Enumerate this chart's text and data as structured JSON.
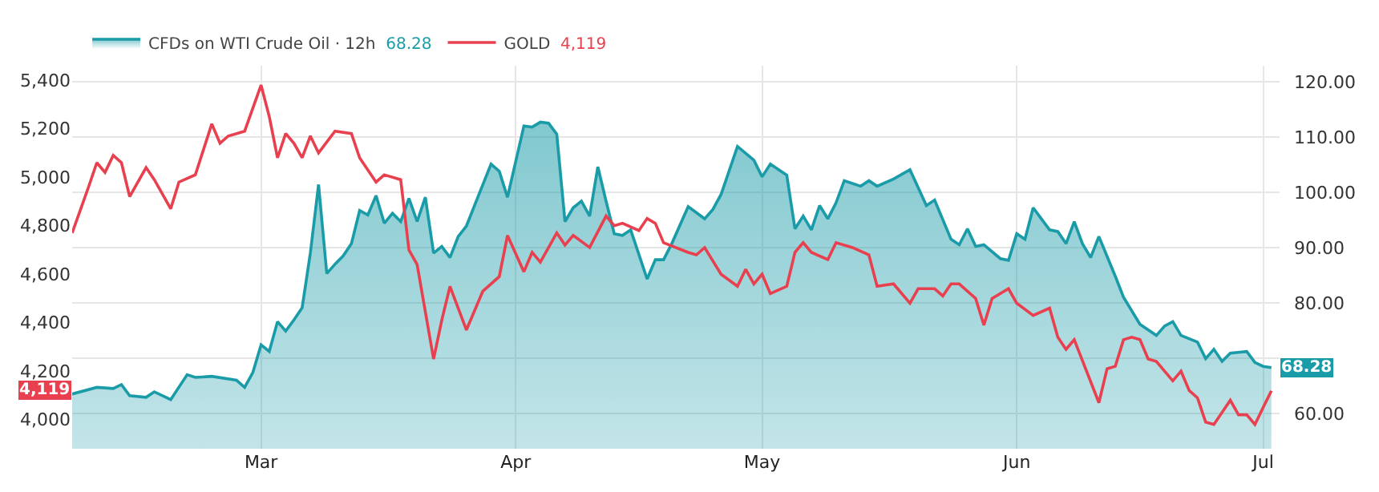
{
  "chart_data": {
    "type": "line",
    "xlim": [
      "--02-06",
      "--07-03"
    ],
    "xticks": [
      {
        "value": "--03-01",
        "label": "Mar"
      },
      {
        "value": "--04-01",
        "label": "Apr"
      },
      {
        "value": "--05-01",
        "label": "May"
      },
      {
        "value": "--06-01",
        "label": "Jun"
      },
      {
        "value": "--07-01",
        "label": "Jul"
      }
    ],
    "ylim": [
      3880,
      5460
    ],
    "yticks": [
      {
        "value": 4000,
        "label": "4,000"
      },
      {
        "value": 4200,
        "label": "4,200"
      },
      {
        "value": 4400,
        "label": "4,400"
      },
      {
        "value": 4600,
        "label": "4,600"
      },
      {
        "value": 4800,
        "label": "4,800"
      },
      {
        "value": 5000,
        "label": "5,000"
      },
      {
        "value": 5200,
        "label": "5,200"
      },
      {
        "value": 5400,
        "label": "5,400"
      }
    ],
    "y2lim": [
      53.6,
      122.9
    ],
    "y2ticks": [
      {
        "value": 60,
        "label": "60.00"
      },
      {
        "value": 70,
        "label": null
      },
      {
        "value": 80,
        "label": "80.00"
      },
      {
        "value": 90,
        "label": "90.00"
      },
      {
        "value": 100,
        "label": "100.00"
      },
      {
        "value": 110,
        "label": "110.00"
      },
      {
        "value": 120,
        "label": "120.00"
      }
    ],
    "grid": true,
    "legend": "top left",
    "annotations": [
      "4,119",
      "68.28"
    ],
    "series": [
      {
        "name": "GOLD",
        "color": "#e8404f",
        "x": [
          "--02-06",
          "--02-08",
          "--02-09",
          "--02-10",
          "--02-11",
          "--02-12",
          "--02-13",
          "--02-15",
          "--02-16",
          "--02-18",
          "--02-19",
          "--02-21",
          "--02-23",
          "--02-24",
          "--02-25",
          "--02-27",
          "--03-01",
          "--03-02",
          "--03-03",
          "--03-04",
          "--03-05",
          "--03-06",
          "--03-07",
          "--03-08",
          "--03-10",
          "--03-12",
          "--03-13",
          "--03-15",
          "--03-16",
          "--03-18",
          "--03-19",
          "--03-20",
          "--03-22",
          "--03-23",
          "--03-24",
          "--03-26",
          "--03-28",
          "--03-30",
          "--03-31",
          "--04-02",
          "--04-03",
          "--04-04",
          "--04-06",
          "--04-07",
          "--04-08",
          "--04-10",
          "--04-12",
          "--04-13",
          "--04-14",
          "--04-16",
          "--04-17",
          "--04-18",
          "--04-19",
          "--04-22",
          "--04-23",
          "--04-24",
          "--04-26",
          "--04-28",
          "--04-29",
          "--04-30",
          "--05-01",
          "--05-02",
          "--05-04",
          "--05-05",
          "--05-06",
          "--05-07",
          "--05-09",
          "--05-10",
          "--05-12",
          "--05-14",
          "--05-15",
          "--05-17",
          "--05-19",
          "--05-20",
          "--05-22",
          "--05-23",
          "--05-24",
          "--05-25",
          "--05-27",
          "--05-28",
          "--05-29",
          "--05-31",
          "--06-01",
          "--06-03",
          "--06-05",
          "--06-06",
          "--06-07",
          "--06-08",
          "--06-11",
          "--06-12",
          "--06-13",
          "--06-14",
          "--06-15",
          "--06-16",
          "--06-17",
          "--06-18",
          "--06-20",
          "--06-21",
          "--06-22",
          "--06-23",
          "--06-24",
          "--06-25",
          "--06-27",
          "--06-28",
          "--06-29",
          "--06-30",
          "--07-01",
          "--07-02"
        ],
        "values": [
          4770,
          4960,
          5060,
          5020,
          5090,
          5060,
          4920,
          5040,
          4990,
          4870,
          4980,
          5010,
          5220,
          5140,
          5170,
          5190,
          5380,
          5250,
          5080,
          5180,
          5140,
          5080,
          5170,
          5100,
          5190,
          5180,
          5080,
          4980,
          5010,
          4990,
          4700,
          4640,
          4250,
          4410,
          4550,
          4370,
          4530,
          4590,
          4760,
          4610,
          4690,
          4650,
          4770,
          4720,
          4760,
          4710,
          4840,
          4800,
          4810,
          4780,
          4830,
          4810,
          4730,
          4690,
          4680,
          4710,
          4600,
          4550,
          4620,
          4560,
          4600,
          4520,
          4550,
          4690,
          4730,
          4690,
          4660,
          4730,
          4710,
          4680,
          4550,
          4560,
          4480,
          4540,
          4540,
          4510,
          4560,
          4560,
          4500,
          4390,
          4500,
          4540,
          4480,
          4430,
          4460,
          4340,
          4290,
          4330,
          4070,
          4210,
          4220,
          4330,
          4340,
          4330,
          4250,
          4240,
          4160,
          4200,
          4120,
          4090,
          3990,
          3980,
          4080,
          4020,
          4020,
          3980,
          4050,
          4119
        ]
      },
      {
        "name": "CFDs on WTI Crude Oil · 12h",
        "color": "#1a9ba8",
        "type": "area",
        "axis": "y2",
        "x": [
          "--02-06",
          "--02-09",
          "--02-11",
          "--02-12",
          "--02-13",
          "--02-15",
          "--02-16",
          "--02-18",
          "--02-20",
          "--02-21",
          "--02-23",
          "--02-26",
          "--02-27",
          "--02-28",
          "--03-01",
          "--03-02",
          "--03-03",
          "--03-04",
          "--03-05",
          "--03-06",
          "--03-07",
          "--03-08",
          "--03-09",
          "--03-10",
          "--03-11",
          "--03-12",
          "--03-13",
          "--03-14",
          "--03-15",
          "--03-16",
          "--03-17",
          "--03-18",
          "--03-19",
          "--03-20",
          "--03-21",
          "--03-22",
          "--03-23",
          "--03-24",
          "--03-25",
          "--03-26",
          "--03-28",
          "--03-29",
          "--03-30",
          "--03-31",
          "--04-02",
          "--04-03",
          "--04-04",
          "--04-05",
          "--04-06",
          "--04-07",
          "--04-08",
          "--04-09",
          "--04-10",
          "--04-11",
          "--04-12",
          "--04-13",
          "--04-14",
          "--04-15",
          "--04-17",
          "--04-18",
          "--04-19",
          "--04-20",
          "--04-22",
          "--04-24",
          "--04-25",
          "--04-26",
          "--04-28",
          "--04-30",
          "--05-01",
          "--05-02",
          "--05-04",
          "--05-05",
          "--05-06",
          "--05-07",
          "--05-08",
          "--05-09",
          "--05-10",
          "--05-11",
          "--05-13",
          "--05-14",
          "--05-15",
          "--05-17",
          "--05-19",
          "--05-21",
          "--05-22",
          "--05-24",
          "--05-25",
          "--05-26",
          "--05-27",
          "--05-28",
          "--05-30",
          "--05-31",
          "--06-01",
          "--06-02",
          "--06-03",
          "--06-04",
          "--06-05",
          "--06-06",
          "--06-07",
          "--06-08",
          "--06-09",
          "--06-10",
          "--06-11",
          "--06-13",
          "--06-14",
          "--06-16",
          "--06-18",
          "--06-19",
          "--06-20",
          "--06-21",
          "--06-23",
          "--06-24",
          "--06-25",
          "--06-26",
          "--06-27",
          "--06-29",
          "--06-30",
          "--07-01",
          "--07-02"
        ],
        "values": [
          63.5,
          64.7,
          64.5,
          65.2,
          63.2,
          62.9,
          63.9,
          62.5,
          67.0,
          66.5,
          66.7,
          66.0,
          64.7,
          67.4,
          72.4,
          71.2,
          76.6,
          74.9,
          76.9,
          79.1,
          89.0,
          101.4,
          85.3,
          87.0,
          88.5,
          90.7,
          96.7,
          95.9,
          99.4,
          94.4,
          96.2,
          94.7,
          98.9,
          94.7,
          99.1,
          89.0,
          90.2,
          88.2,
          92.0,
          93.9,
          101.4,
          105.1,
          103.8,
          99.1,
          112.0,
          111.8,
          112.7,
          112.5,
          110.5,
          94.7,
          97.2,
          98.4,
          95.7,
          104.6,
          98.4,
          92.5,
          92.2,
          93.2,
          84.3,
          87.8,
          87.8,
          90.7,
          97.4,
          95.2,
          96.9,
          99.6,
          108.3,
          105.8,
          102.8,
          105.1,
          103.1,
          93.4,
          95.7,
          93.2,
          97.6,
          95.2,
          98.1,
          102.1,
          101.1,
          102.1,
          101.1,
          102.4,
          104.1,
          97.6,
          98.6,
          91.5,
          90.5,
          93.4,
          90.2,
          90.5,
          88.0,
          87.7,
          92.5,
          91.5,
          97.2,
          95.2,
          93.2,
          92.9,
          90.7,
          94.7,
          90.7,
          88.2,
          92.0,
          84.8,
          81.0,
          76.1,
          74.1,
          75.8,
          76.6,
          74.1,
          72.9,
          69.9,
          71.6,
          69.4,
          70.9,
          71.2,
          69.2,
          68.5,
          68.28
        ]
      }
    ]
  }
}
